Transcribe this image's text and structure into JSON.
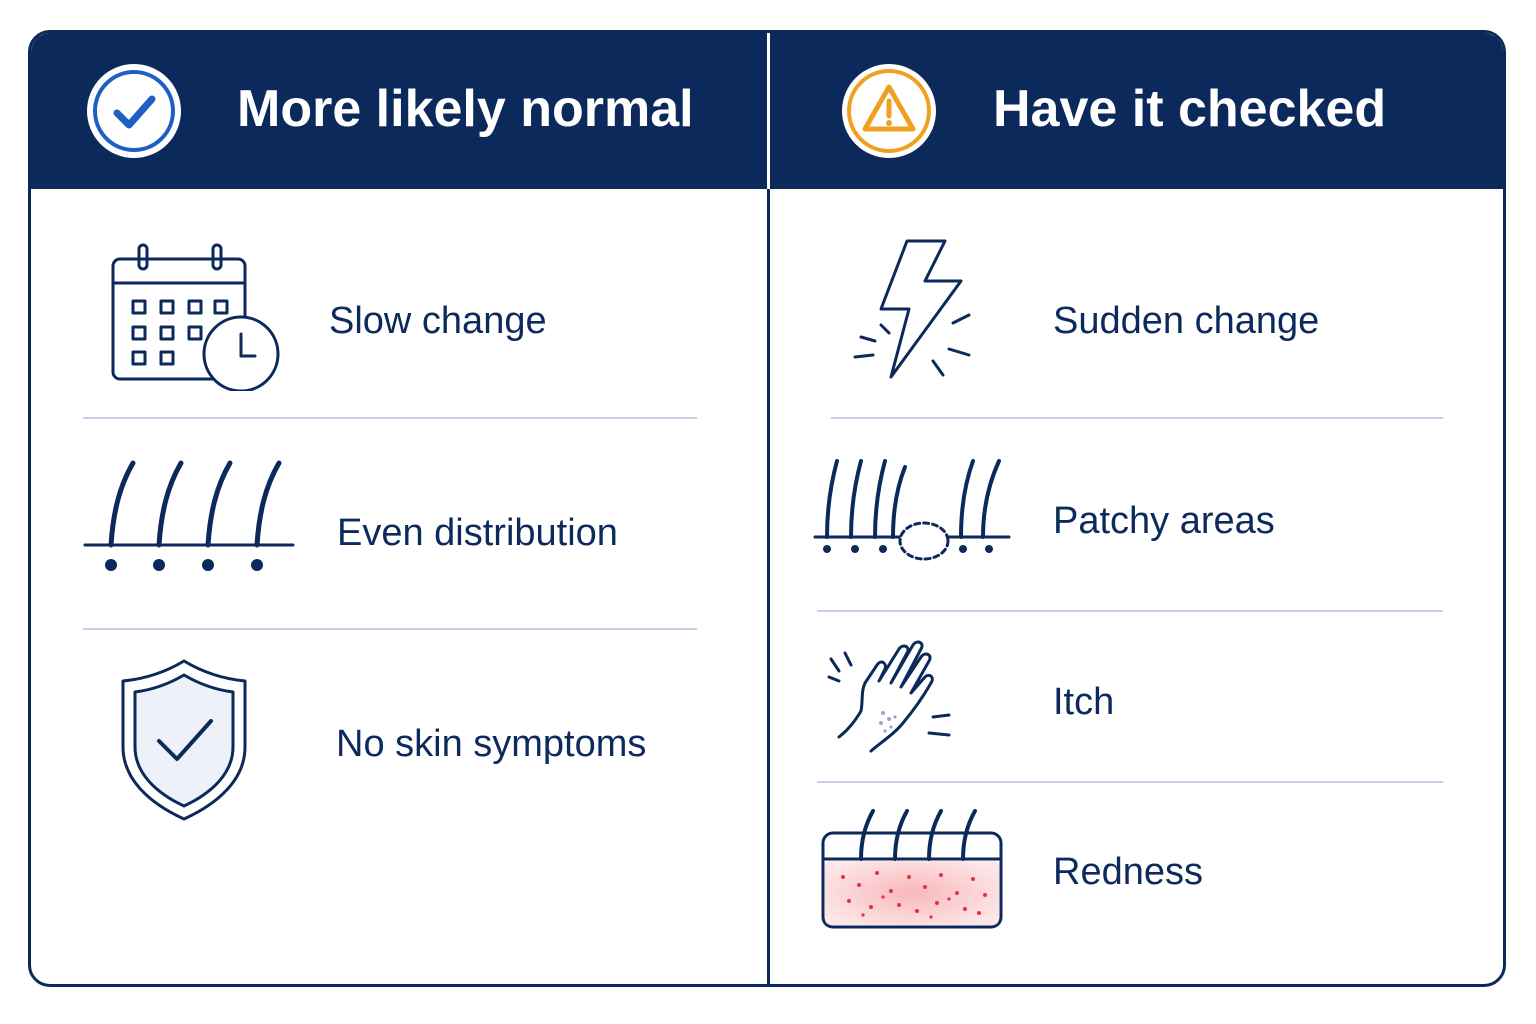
{
  "columns": {
    "normal": {
      "title": "More likely normal",
      "badge_icon": "check-circle-icon",
      "badge_color": "#1f5fc4",
      "items": [
        {
          "label": "Slow change",
          "icon": "calendar-clock-icon"
        },
        {
          "label": "Even distribution",
          "icon": "hair-follicles-icon"
        },
        {
          "label": "No skin symptoms",
          "icon": "shield-check-icon"
        }
      ]
    },
    "check": {
      "title": "Have it checked",
      "badge_icon": "warning-triangle-icon",
      "badge_color": "#f0a020",
      "items": [
        {
          "label": "Sudden change",
          "icon": "lightning-bolt-icon"
        },
        {
          "label": "Patchy areas",
          "icon": "patchy-hair-icon"
        },
        {
          "label": "Itch",
          "icon": "scratching-hand-icon"
        },
        {
          "label": "Redness",
          "icon": "red-skin-icon"
        }
      ]
    }
  },
  "colors": {
    "navy": "#0b2a5b",
    "separator": "#c4d0e6",
    "redness": "#e8303c"
  }
}
